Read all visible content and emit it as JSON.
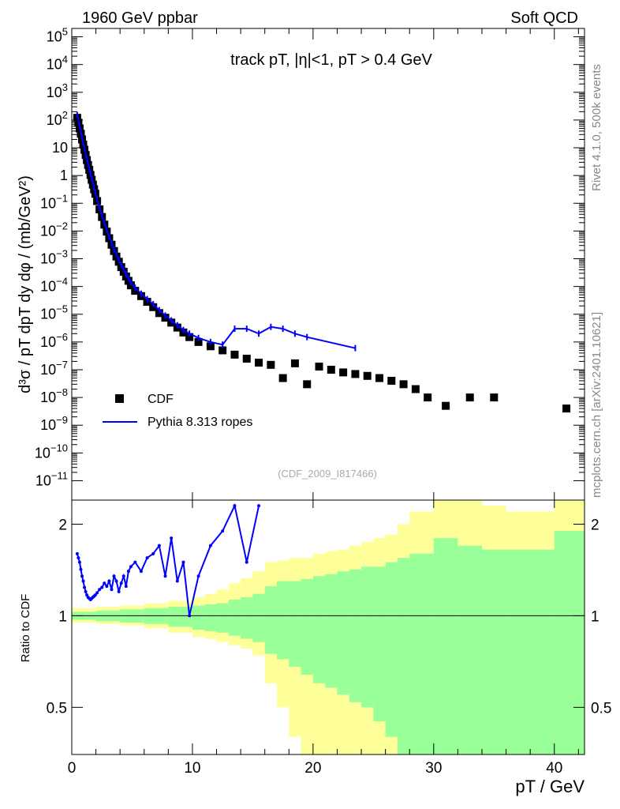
{
  "header": {
    "left": "1960 GeV ppbar",
    "right": "Soft QCD",
    "side_top": "Rivet 4.1.0,  500k events",
    "side_bottom": "mcplots.cern.ch [arXiv:2401.10621]"
  },
  "chart_data": [
    {
      "type": "scatter",
      "title": "track pT, |η|<1, pT > 0.4 GeV",
      "subtitle": "(CDF_2009_I817466)",
      "ylabel": "d³σ / pT dpT dy dφ / (mb/GeV²)",
      "yscale": "log",
      "xlim": [
        0,
        42.5
      ],
      "ylim": [
        2e-12,
        200000.0
      ],
      "yticks": [
        "10^5",
        "10^4",
        "10^3",
        "10^2",
        "10",
        "1",
        "10^-1",
        "10^-2",
        "10^-3",
        "10^-4",
        "10^-5",
        "10^-6",
        "10^-7",
        "10^-8",
        "10^-9",
        "10^-10",
        "10^-11"
      ],
      "legend_position": "bottom-left",
      "series": [
        {
          "name": "CDF",
          "style": "markers",
          "color": "#000000",
          "x": [
            0.45,
            0.55,
            0.65,
            0.75,
            0.85,
            0.95,
            1.05,
            1.15,
            1.25,
            1.35,
            1.45,
            1.55,
            1.65,
            1.75,
            1.85,
            1.95,
            2.1,
            2.3,
            2.5,
            2.7,
            2.9,
            3.1,
            3.3,
            3.5,
            3.7,
            3.9,
            4.1,
            4.3,
            4.5,
            4.7,
            4.9,
            5.25,
            5.75,
            6.25,
            6.75,
            7.25,
            7.75,
            8.25,
            8.75,
            9.25,
            9.75,
            10.5,
            11.5,
            12.5,
            13.5,
            14.5,
            15.5,
            16.5,
            17.5,
            18.5,
            19.5,
            20.5,
            21.5,
            22.5,
            23.5,
            24.5,
            25.5,
            26.5,
            27.5,
            28.5,
            29.5,
            31,
            33,
            35,
            41
          ],
          "y": [
            120,
            80,
            50,
            32,
            20,
            13,
            8.5,
            5.5,
            3.6,
            2.4,
            1.6,
            1.05,
            0.7,
            0.47,
            0.32,
            0.22,
            0.12,
            0.06,
            0.032,
            0.017,
            0.0095,
            0.0055,
            0.0032,
            0.0019,
            0.0012,
            0.00078,
            0.0005,
            0.00034,
            0.00023,
            0.00016,
            0.00011,
            7e-05,
            4.5e-05,
            2.8e-05,
            1.8e-05,
            1.1e-05,
            7.5e-06,
            5e-06,
            3.3e-06,
            2.2e-06,
            1.5e-06,
            1e-06,
            7e-07,
            5e-07,
            3.5e-07,
            2.5e-07,
            1.8e-07,
            1.5e-07,
            5e-08,
            1.7e-07,
            3e-08,
            1.3e-07,
            1e-07,
            8e-08,
            7e-08,
            6e-08,
            5e-08,
            4e-08,
            3e-08,
            2e-08,
            1e-08,
            5e-09,
            1e-08,
            1e-08,
            4e-09
          ]
        },
        {
          "name": "Pythia 8.313 ropes",
          "style": "line",
          "color": "#0000ff",
          "x": [
            0.45,
            0.55,
            0.65,
            0.75,
            0.85,
            0.95,
            1.05,
            1.15,
            1.25,
            1.35,
            1.45,
            1.55,
            1.65,
            1.75,
            1.85,
            1.95,
            2.1,
            2.3,
            2.5,
            2.7,
            2.9,
            3.1,
            3.3,
            3.5,
            3.7,
            3.9,
            4.1,
            4.3,
            4.5,
            4.7,
            4.9,
            5.25,
            5.75,
            6.25,
            6.75,
            7.25,
            7.75,
            8.25,
            8.75,
            9.25,
            9.75,
            10.5,
            11.5,
            12.5,
            13.5,
            14.5,
            15.5,
            16.5,
            17.5,
            18.5,
            19.5,
            23.5
          ],
          "y": [
            150,
            100,
            62,
            38,
            24,
            15,
            9.5,
            6,
            3.9,
            2.6,
            1.7,
            1.15,
            0.78,
            0.54,
            0.37,
            0.25,
            0.14,
            0.07,
            0.037,
            0.02,
            0.011,
            0.0063,
            0.0037,
            0.0022,
            0.0014,
            0.0009,
            0.0006,
            0.0004,
            0.00028,
            0.00019,
            0.00014,
            9e-05,
            5.5e-05,
            3.5e-05,
            2.3e-05,
            1.4e-05,
            9e-06,
            6e-06,
            4e-06,
            2.7e-06,
            2e-06,
            1.4e-06,
            1e-06,
            8e-07,
            3e-06,
            3e-06,
            2e-06,
            3.5e-06,
            3e-06,
            2e-06,
            1.5e-06,
            6e-07
          ]
        }
      ]
    },
    {
      "type": "area",
      "ylabel": "Ratio to CDF",
      "xlabel": "pT / GeV",
      "xlim": [
        0,
        42.5
      ],
      "ylim": [
        0.35,
        2.4
      ],
      "yscale": "log",
      "xticks": [
        "0",
        "10",
        "20",
        "30",
        "40"
      ],
      "yticks": [
        "0.5",
        "1",
        "2"
      ],
      "reference_line": 1,
      "bands": [
        {
          "name": "",
          "color": "#ffff99",
          "x": [
            0,
            2,
            4,
            6,
            8,
            10,
            11,
            12,
            13,
            14,
            15,
            16,
            17,
            18,
            19,
            20,
            21,
            22,
            23,
            24,
            25,
            26,
            27,
            28,
            30,
            32,
            34,
            36,
            40,
            42.5
          ],
          "low": [
            0.95,
            0.94,
            0.93,
            0.91,
            0.88,
            0.85,
            0.84,
            0.82,
            0.8,
            0.78,
            0.74,
            0.6,
            0.5,
            0.4,
            0.3,
            0.3,
            0.3,
            0.3,
            0.3,
            0.3,
            0.3,
            0.3,
            0.3,
            0.3,
            0.3,
            0.3,
            0.3,
            0.3,
            0.3,
            0.3
          ],
          "high": [
            1.06,
            1.07,
            1.08,
            1.1,
            1.12,
            1.15,
            1.18,
            1.22,
            1.28,
            1.33,
            1.4,
            1.5,
            1.52,
            1.55,
            1.55,
            1.6,
            1.63,
            1.65,
            1.7,
            1.75,
            1.8,
            1.85,
            2.0,
            2.2,
            2.6,
            2.4,
            2.3,
            2.2,
            2.6,
            2.6
          ]
        },
        {
          "name": "",
          "color": "#99ff99",
          "x": [
            0,
            2,
            4,
            6,
            8,
            10,
            11,
            12,
            13,
            14,
            15,
            16,
            17,
            18,
            19,
            20,
            21,
            22,
            23,
            24,
            25,
            26,
            27,
            28,
            30,
            32,
            34,
            36,
            40,
            42.5
          ],
          "low": [
            0.97,
            0.96,
            0.95,
            0.94,
            0.92,
            0.9,
            0.89,
            0.88,
            0.86,
            0.84,
            0.82,
            0.75,
            0.72,
            0.68,
            0.64,
            0.6,
            0.58,
            0.55,
            0.52,
            0.5,
            0.45,
            0.4,
            0.35,
            0.3,
            0.3,
            0.3,
            0.3,
            0.3,
            0.3,
            0.3
          ],
          "high": [
            1.03,
            1.04,
            1.05,
            1.06,
            1.07,
            1.08,
            1.09,
            1.1,
            1.13,
            1.15,
            1.18,
            1.25,
            1.3,
            1.3,
            1.32,
            1.35,
            1.37,
            1.4,
            1.42,
            1.45,
            1.45,
            1.5,
            1.55,
            1.6,
            1.8,
            1.7,
            1.65,
            1.65,
            1.9,
            1.9
          ]
        }
      ],
      "series": [
        {
          "name": "Pythia 8.313 ropes",
          "color": "#0000ff",
          "x": [
            0.45,
            0.55,
            0.65,
            0.75,
            0.85,
            0.95,
            1.05,
            1.15,
            1.25,
            1.35,
            1.45,
            1.55,
            1.65,
            1.75,
            1.85,
            1.95,
            2.1,
            2.3,
            2.5,
            2.7,
            2.9,
            3.1,
            3.3,
            3.5,
            3.7,
            3.9,
            4.1,
            4.3,
            4.5,
            4.7,
            4.9,
            5.25,
            5.75,
            6.25,
            6.75,
            7.25,
            7.75,
            8.25,
            8.75,
            9.25,
            9.75,
            10.5,
            11.5,
            12.5,
            13.5,
            14.5,
            15.5
          ],
          "y": [
            1.6,
            1.55,
            1.5,
            1.42,
            1.35,
            1.3,
            1.24,
            1.2,
            1.17,
            1.15,
            1.14,
            1.13,
            1.14,
            1.15,
            1.16,
            1.17,
            1.19,
            1.22,
            1.24,
            1.28,
            1.25,
            1.3,
            1.22,
            1.35,
            1.3,
            1.2,
            1.28,
            1.35,
            1.25,
            1.4,
            1.45,
            1.5,
            1.4,
            1.55,
            1.6,
            1.7,
            1.35,
            1.8,
            1.3,
            1.5,
            1.0,
            1.35,
            1.7,
            1.9,
            2.3,
            1.5,
            2.3
          ]
        }
      ]
    }
  ]
}
